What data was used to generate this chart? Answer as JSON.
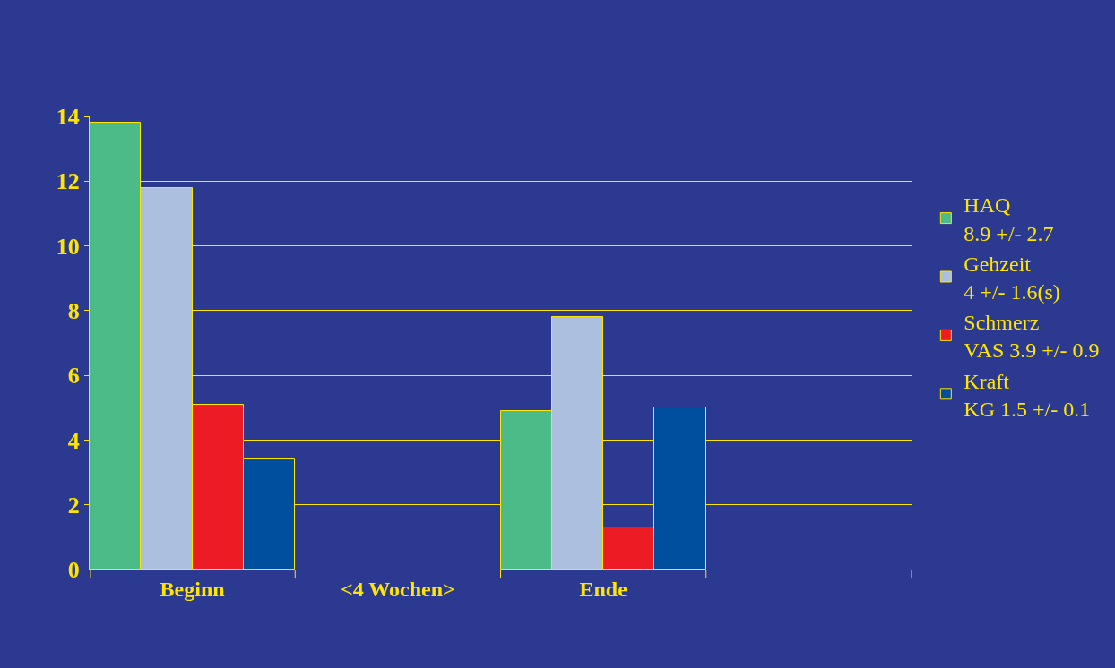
{
  "chart_data": {
    "type": "bar",
    "categories": [
      "Beginn",
      "<4 Wochen>",
      "Ende",
      null
    ],
    "series": [
      {
        "name": "HAQ\n8.9 +/- 2.7",
        "color": "#4cbb87",
        "values": [
          13.8,
          null,
          4.9,
          null
        ]
      },
      {
        "name": "Gehzeit\n4 +/- 1.6(s)",
        "color": "#adbfdf",
        "values": [
          11.8,
          null,
          7.8,
          null
        ]
      },
      {
        "name": "Schmerz\nVAS 3.9 +/- 0.9",
        "color": "#ed1c24",
        "values": [
          5.1,
          null,
          1.3,
          null
        ]
      },
      {
        "name": "Kraft\nKG 1.5 +/- 0.1",
        "color": "#004f9f",
        "values": [
          3.4,
          null,
          5.0,
          null
        ]
      }
    ],
    "ylim": [
      0,
      14
    ],
    "yticks": [
      0,
      2,
      4,
      6,
      8,
      10,
      12,
      14
    ],
    "grid": "y",
    "legend": "right"
  }
}
